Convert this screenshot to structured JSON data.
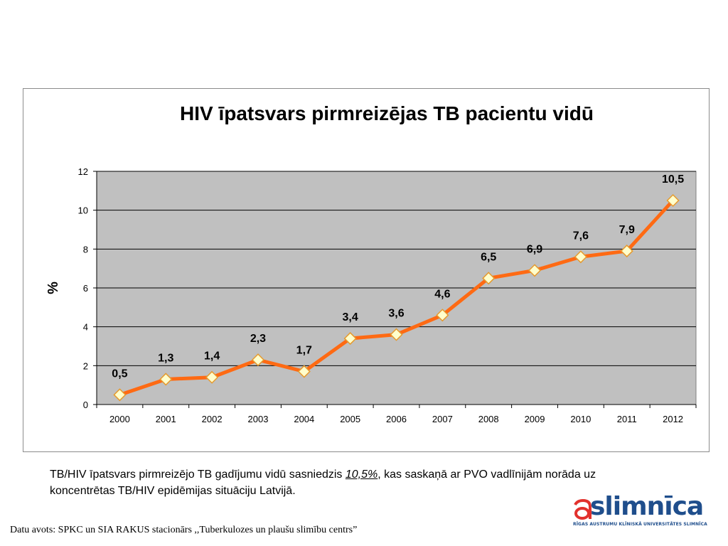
{
  "chart_data": {
    "type": "line",
    "title": "HIV īpatsvars pirmreizējas TB pacientu vidū",
    "ylabel": "%",
    "xlabel": "",
    "ylim": [
      0,
      12
    ],
    "yticks": [
      "0",
      "2",
      "4",
      "6",
      "8",
      "10",
      "12"
    ],
    "grid": true,
    "categories": [
      "2000",
      "2001",
      "2002",
      "2003",
      "2004",
      "2005",
      "2006",
      "2007",
      "2008",
      "2009",
      "2010",
      "2011",
      "2012"
    ],
    "series": [
      {
        "values": [
          0.5,
          1.3,
          1.4,
          2.3,
          1.7,
          3.4,
          3.6,
          4.6,
          6.5,
          6.9,
          7.6,
          7.9,
          10.5
        ],
        "data_labels": [
          "0,5",
          "1,3",
          "1,4",
          "2,3",
          "1,7",
          "3,4",
          "3,6",
          "4,6",
          "6,5",
          "6,9",
          "7,6",
          "7,9",
          "10,5"
        ],
        "color": "#ff6a13",
        "marker": "diamond",
        "marker_fill": "#ffffcc",
        "marker_stroke": "#e69a2e"
      }
    ],
    "plot_background": "#c0c0c0"
  },
  "caption": {
    "part1": "TB/HIV īpatsvars pirmreizējo TB  gadījumu vidū sasniedzis ",
    "highlight": "10,5%",
    "part2": ", kas saskaņā ar PVO vadlīnijām norāda uz koncentrētas TB/HIV epidēmijas situāciju Latvijā."
  },
  "source": "Datu avots: SPKC un SIA RAKUS  stacionārs ,,Tuberkulozes un plaušu slimību centrs”",
  "logo": {
    "word": "slimnīca",
    "subtitle": "RĪGAS AUSTRUMU KLĪNISKĀ UNIVERSITĀTES SLIMNĪCA",
    "color": "#1f4e8c",
    "accent": "#e2312d"
  }
}
